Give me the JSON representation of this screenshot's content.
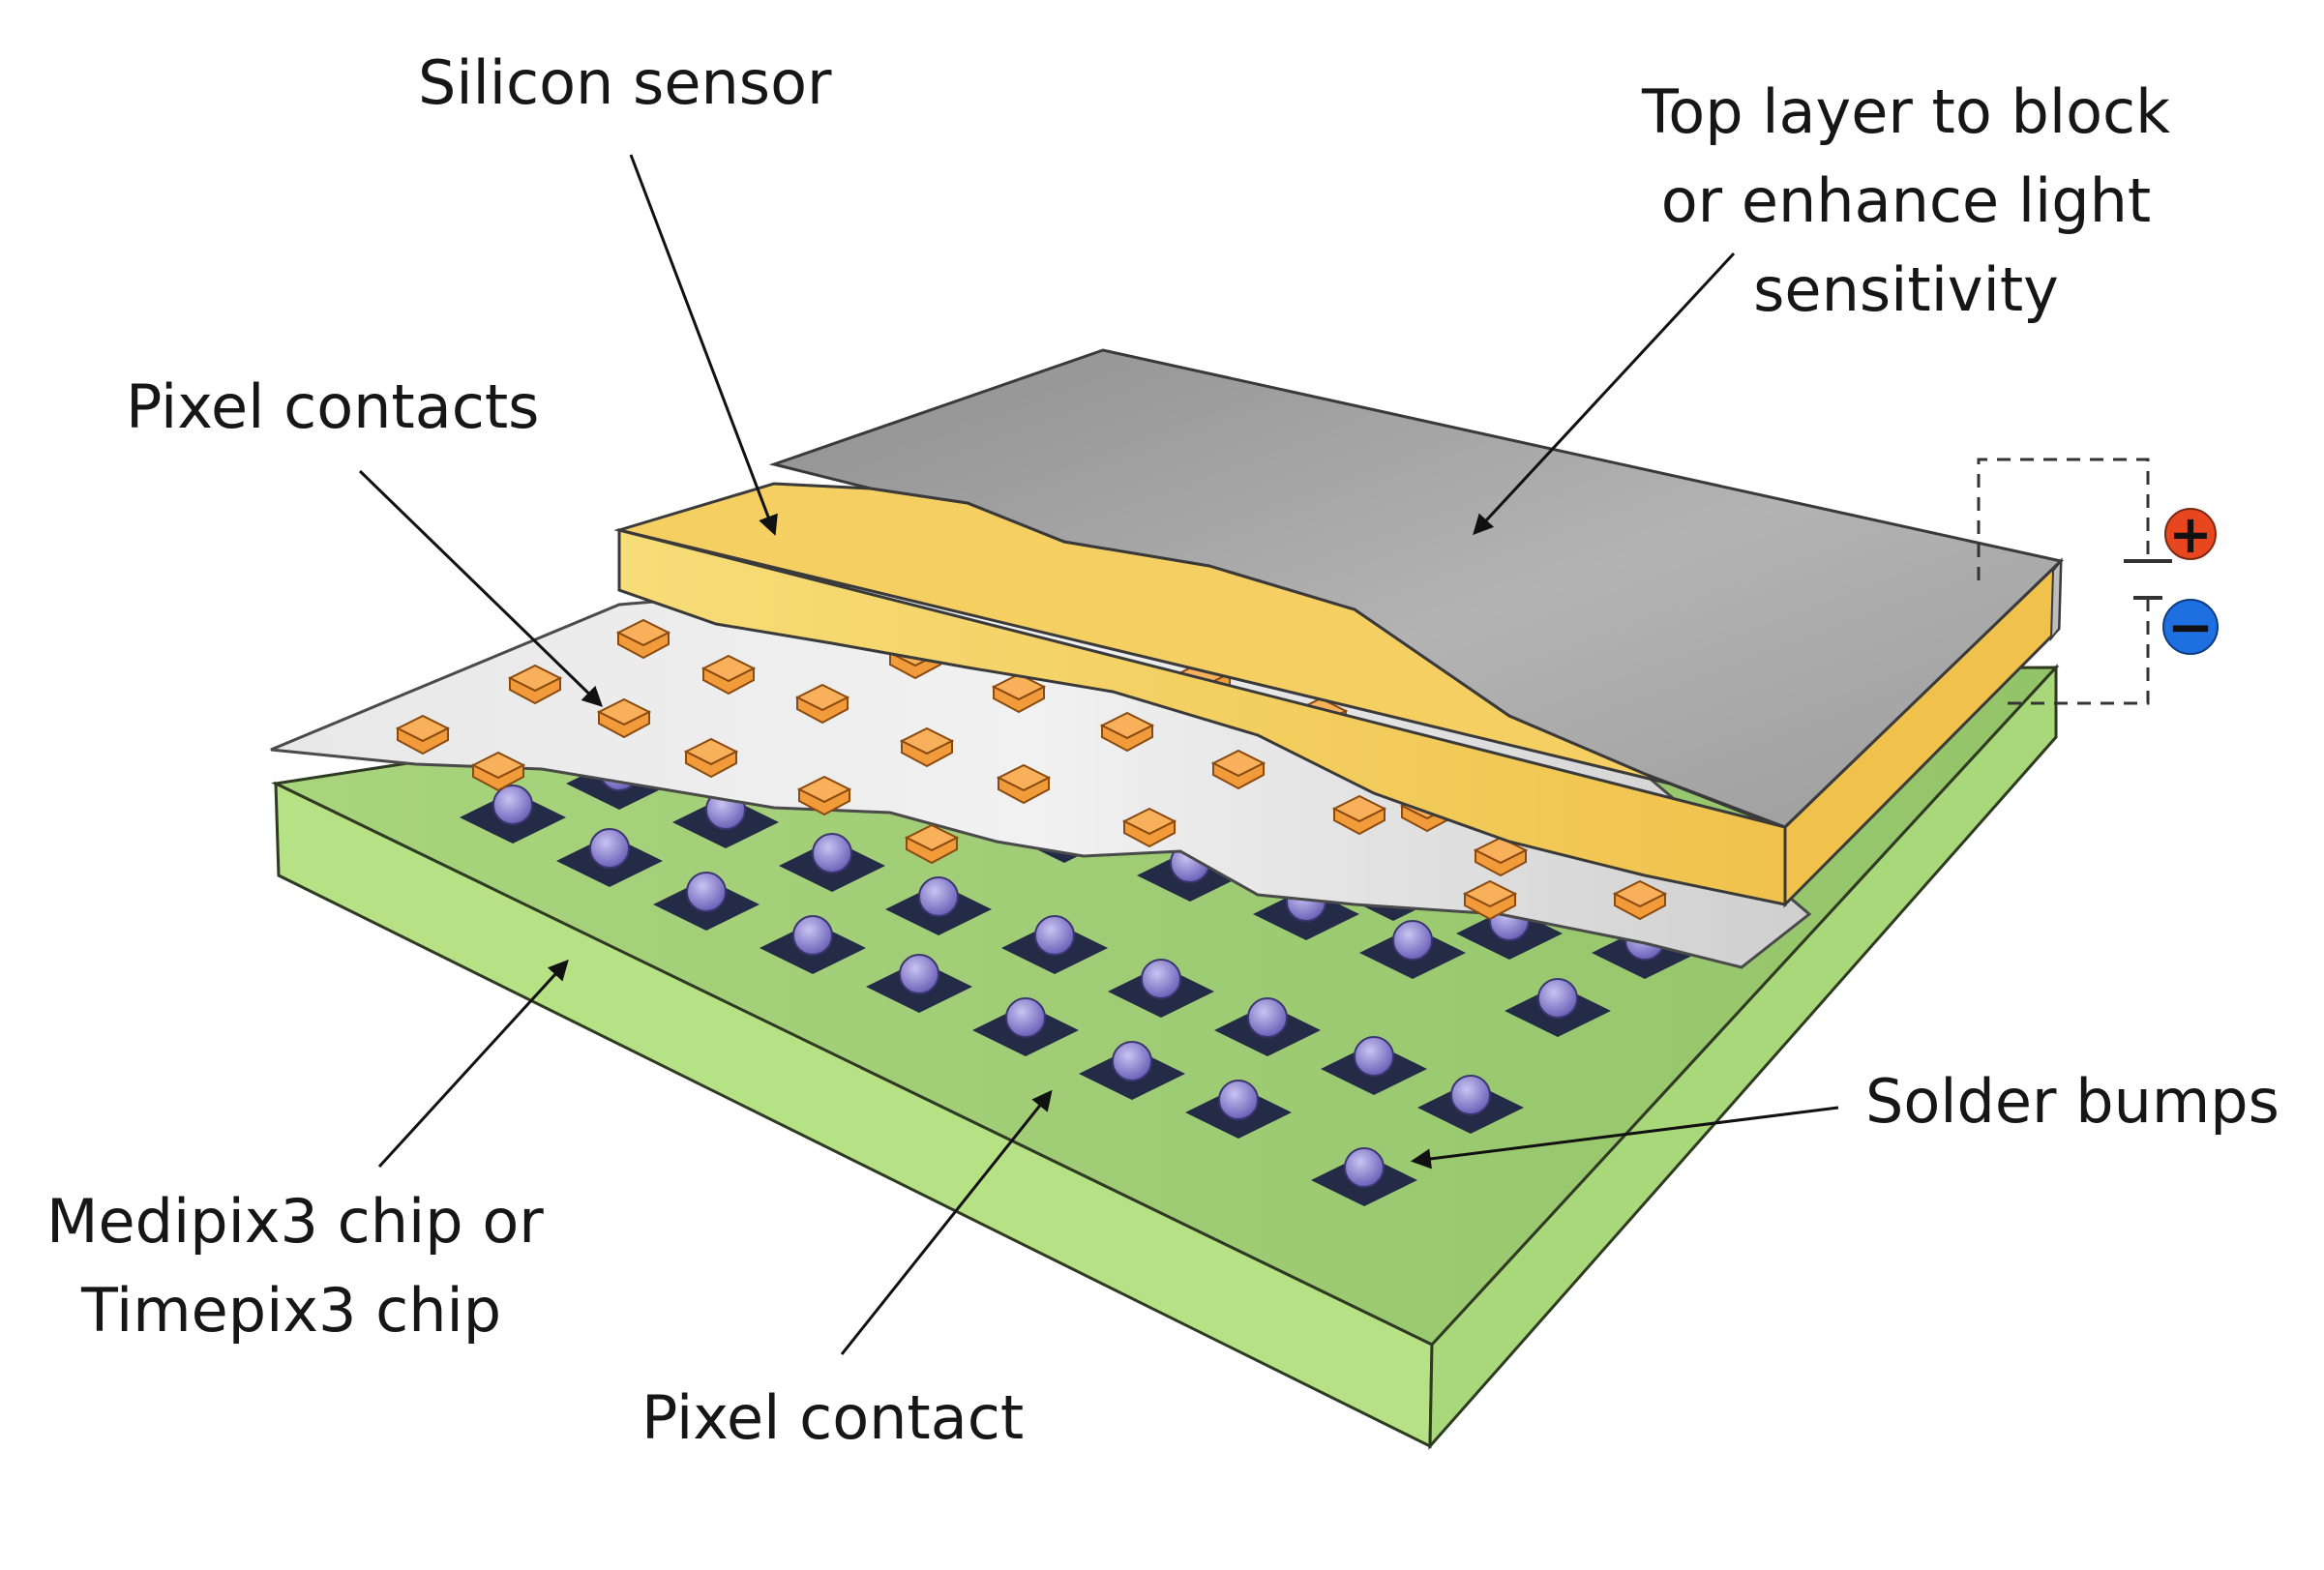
{
  "labels": {
    "silicon_sensor": "Silicon sensor",
    "top_layer": [
      "Top layer to block",
      "or enhance light",
      "sensitivity"
    ],
    "pixel_contacts": "Pixel contacts",
    "chip": [
      "Medipix3 chip or",
      "Timepix3 chip"
    ],
    "pixel_contact": "Pixel contact",
    "solder_bumps": "Solder bumps"
  },
  "bias": {
    "plus": "+",
    "minus": "−"
  },
  "colors": {
    "chip_top": "#9fcc75",
    "chip_front": "#b6e285",
    "chip_right": "#a8d87a",
    "contact_sheet": "#e4e4e4",
    "sensor_top": "#f6cf62",
    "sensor_front": "#f3d35a",
    "top_layer": "#a5a5a5",
    "pixel_contact": "#f29b3a",
    "pad": "#232b47",
    "bump": "#8d83d6",
    "plus": "#e8461f",
    "minus": "#1e6fe0"
  }
}
